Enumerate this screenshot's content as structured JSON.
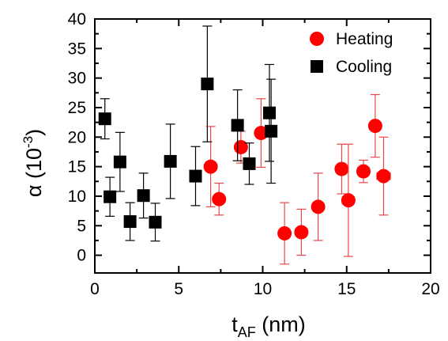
{
  "chart_data": {
    "type": "scatter",
    "xlabel": {
      "main": "t",
      "sub": "AF",
      "unit": " (nm)"
    },
    "ylabel": {
      "main": "α (10",
      "sup": "-3",
      "end": ")"
    },
    "xlim": [
      0,
      20
    ],
    "ylim": [
      -3,
      40
    ],
    "x_ticks": [
      0,
      5,
      10,
      15,
      20
    ],
    "y_ticks": [
      0,
      5,
      10,
      15,
      20,
      25,
      30,
      35,
      40
    ],
    "grid": false,
    "legend_position": "top-right",
    "series": [
      {
        "name": "Heating",
        "marker": "circle",
        "color": "#ff0000",
        "error_color": "#e8474a",
        "points": [
          {
            "x": 6.9,
            "y": 15.0,
            "yerr": 6.8,
            "xerr": 0.3
          },
          {
            "x": 7.4,
            "y": 9.5,
            "yerr": 2.7,
            "xerr": 0.3
          },
          {
            "x": 8.7,
            "y": 18.3,
            "yerr": 2.7,
            "xerr": 0.3
          },
          {
            "x": 9.9,
            "y": 20.7,
            "yerr": 5.8,
            "xerr": 0.3
          },
          {
            "x": 11.3,
            "y": 3.7,
            "yerr": 5.2,
            "xerr": 0.3
          },
          {
            "x": 12.3,
            "y": 3.9,
            "yerr": 3.9,
            "xerr": 0.35
          },
          {
            "x": 13.3,
            "y": 8.2,
            "yerr": 5.7,
            "xerr": 0.3
          },
          {
            "x": 14.7,
            "y": 14.6,
            "yerr": 4.2,
            "xerr": 0.3
          },
          {
            "x": 15.1,
            "y": 9.3,
            "yerr": 9.5,
            "xerr": 0.35
          },
          {
            "x": 16.0,
            "y": 14.2,
            "yerr": 1.9,
            "xerr": 0.35
          },
          {
            "x": 16.7,
            "y": 21.9,
            "yerr": 5.3,
            "xerr": 0.3
          },
          {
            "x": 17.2,
            "y": 13.4,
            "yerr": 6.6,
            "xerr": 0.4
          }
        ]
      },
      {
        "name": "Cooling",
        "marker": "square",
        "color": "#000000",
        "error_color": "#000000",
        "points": [
          {
            "x": 0.6,
            "y": 23.1,
            "yerr": 3.4
          },
          {
            "x": 0.9,
            "y": 9.9,
            "yerr": 3.3
          },
          {
            "x": 1.5,
            "y": 15.8,
            "yerr": 5.0
          },
          {
            "x": 2.1,
            "y": 5.7,
            "yerr": 3.2
          },
          {
            "x": 2.9,
            "y": 10.1,
            "yerr": 3.8
          },
          {
            "x": 3.6,
            "y": 5.6,
            "yerr": 3.2
          },
          {
            "x": 4.5,
            "y": 15.9,
            "yerr": 6.3
          },
          {
            "x": 6.0,
            "y": 13.4,
            "yerr": 5.0
          },
          {
            "x": 6.7,
            "y": 29.0,
            "yerr": 9.8
          },
          {
            "x": 8.5,
            "y": 22.0,
            "yerr": 6.0
          },
          {
            "x": 9.2,
            "y": 15.5,
            "yerr": 3.5
          },
          {
            "x": 10.4,
            "y": 24.1,
            "yerr": 8.2
          },
          {
            "x": 10.5,
            "y": 21.0,
            "yerr": 8.8
          }
        ]
      }
    ]
  }
}
